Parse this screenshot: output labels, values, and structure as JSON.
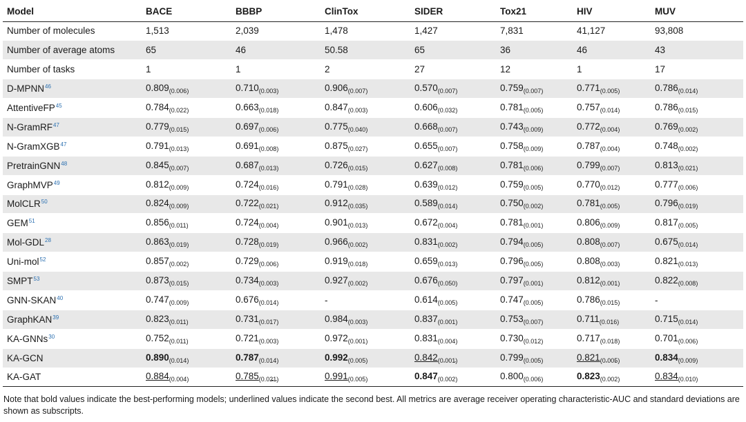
{
  "table": {
    "headers": [
      "Model",
      "BACE",
      "BBBP",
      "ClinTox",
      "SIDER",
      "Tox21",
      "HIV",
      "MUV"
    ],
    "rows": [
      {
        "label": "Number of molecules",
        "cells": [
          {
            "v": "1,513"
          },
          {
            "v": "2,039"
          },
          {
            "v": "1,478"
          },
          {
            "v": "1,427"
          },
          {
            "v": "7,831"
          },
          {
            "v": "41,127"
          },
          {
            "v": "93,808"
          }
        ]
      },
      {
        "label": "Number of average atoms",
        "cells": [
          {
            "v": "65"
          },
          {
            "v": "46"
          },
          {
            "v": "50.58"
          },
          {
            "v": "65"
          },
          {
            "v": "36"
          },
          {
            "v": "46"
          },
          {
            "v": "43"
          }
        ]
      },
      {
        "label": "Number of tasks",
        "cells": [
          {
            "v": "1"
          },
          {
            "v": "1"
          },
          {
            "v": "2"
          },
          {
            "v": "27"
          },
          {
            "v": "12"
          },
          {
            "v": "1"
          },
          {
            "v": "17"
          }
        ]
      },
      {
        "label": "D-MPNN",
        "ref": "46",
        "cells": [
          {
            "v": "0.809",
            "sd": "(0.006)"
          },
          {
            "v": "0.710",
            "sd": "(0.003)"
          },
          {
            "v": "0.906",
            "sd": "(0.007)"
          },
          {
            "v": "0.570",
            "sd": "(0.007)"
          },
          {
            "v": "0.759",
            "sd": "(0.007)"
          },
          {
            "v": "0.771",
            "sd": "(0.005)"
          },
          {
            "v": "0.786",
            "sd": "(0.014)"
          }
        ]
      },
      {
        "label": "AttentiveFP",
        "ref": "45",
        "cells": [
          {
            "v": "0.784",
            "sd": "(0.022)"
          },
          {
            "v": "0.663",
            "sd": "(0.018)"
          },
          {
            "v": "0.847",
            "sd": "(0.003)"
          },
          {
            "v": "0.606",
            "sd": "(0.032)"
          },
          {
            "v": "0.781",
            "sd": "(0.005)"
          },
          {
            "v": "0.757",
            "sd": "(0.014)"
          },
          {
            "v": "0.786",
            "sd": "(0.015)"
          }
        ]
      },
      {
        "label": "N-GramRF",
        "ref": "47",
        "cells": [
          {
            "v": "0.779",
            "sd": "(0.015)"
          },
          {
            "v": "0.697",
            "sd": "(0.006)"
          },
          {
            "v": "0.775",
            "sd": "(0.040)"
          },
          {
            "v": "0.668",
            "sd": "(0.007)"
          },
          {
            "v": "0.743",
            "sd": "(0.009)"
          },
          {
            "v": "0.772",
            "sd": "(0.004)"
          },
          {
            "v": "0.769",
            "sd": "(0.002)"
          }
        ]
      },
      {
        "label": "N-GramXGB",
        "ref": "47",
        "cells": [
          {
            "v": "0.791",
            "sd": "(0.013)"
          },
          {
            "v": "0.691",
            "sd": "(0.008)"
          },
          {
            "v": "0.875",
            "sd": "(0.027)"
          },
          {
            "v": "0.655",
            "sd": "(0.007)"
          },
          {
            "v": "0.758",
            "sd": "(0.009)"
          },
          {
            "v": "0.787",
            "sd": "(0.004)"
          },
          {
            "v": "0.748",
            "sd": "(0.002)"
          }
        ]
      },
      {
        "label": "PretrainGNN",
        "ref": "48",
        "cells": [
          {
            "v": "0.845",
            "sd": "(0.007)"
          },
          {
            "v": "0.687",
            "sd": "(0.013)"
          },
          {
            "v": "0.726",
            "sd": "(0.015)"
          },
          {
            "v": "0.627",
            "sd": "(0.008)"
          },
          {
            "v": "0.781",
            "sd": "(0.006)"
          },
          {
            "v": "0.799",
            "sd": "(0.007)"
          },
          {
            "v": "0.813",
            "sd": "(0.021)"
          }
        ]
      },
      {
        "label": "GraphMVP",
        "ref": "49",
        "cells": [
          {
            "v": "0.812",
            "sd": "(0.009)"
          },
          {
            "v": "0.724",
            "sd": "(0.016)"
          },
          {
            "v": "0.791",
            "sd": "(0.028)"
          },
          {
            "v": "0.639",
            "sd": "(0.012)"
          },
          {
            "v": "0.759",
            "sd": "(0.005)"
          },
          {
            "v": "0.770",
            "sd": "(0.012)"
          },
          {
            "v": "0.777",
            "sd": "(0.006)"
          }
        ]
      },
      {
        "label": "MolCLR",
        "ref": "50",
        "cells": [
          {
            "v": "0.824",
            "sd": "(0.009)"
          },
          {
            "v": "0.722",
            "sd": "(0.021)"
          },
          {
            "v": "0.912",
            "sd": "(0.035)"
          },
          {
            "v": "0.589",
            "sd": "(0.014)"
          },
          {
            "v": "0.750",
            "sd": "(0.002)"
          },
          {
            "v": "0.781",
            "sd": "(0.005)"
          },
          {
            "v": "0.796",
            "sd": "(0.019)"
          }
        ]
      },
      {
        "label": "GEM",
        "ref": "51",
        "cells": [
          {
            "v": "0.856",
            "sd": "(0.011)"
          },
          {
            "v": "0.724",
            "sd": "(0.004)"
          },
          {
            "v": "0.901",
            "sd": "(0.013)"
          },
          {
            "v": "0.672",
            "sd": "(0.004)"
          },
          {
            "v": "0.781",
            "sd": "(0.001)"
          },
          {
            "v": "0.806",
            "sd": "(0.009)"
          },
          {
            "v": "0.817",
            "sd": "(0.005)"
          }
        ]
      },
      {
        "label": "Mol-GDL",
        "ref": "28",
        "cells": [
          {
            "v": "0.863",
            "sd": "(0.019)"
          },
          {
            "v": "0.728",
            "sd": "(0.019)"
          },
          {
            "v": "0.966",
            "sd": "(0.002)"
          },
          {
            "v": "0.831",
            "sd": "(0.002)"
          },
          {
            "v": "0.794",
            "sd": "(0.005)"
          },
          {
            "v": "0.808",
            "sd": "(0.007)"
          },
          {
            "v": "0.675",
            "sd": "(0.014)"
          }
        ]
      },
      {
        "label": "Uni-mol",
        "ref": "52",
        "cells": [
          {
            "v": "0.857",
            "sd": "(0.002)"
          },
          {
            "v": "0.729",
            "sd": "(0.006)"
          },
          {
            "v": "0.919",
            "sd": "(0.018)"
          },
          {
            "v": "0.659",
            "sd": "(0.013)"
          },
          {
            "v": "0.796",
            "sd": "(0.005)"
          },
          {
            "v": "0.808",
            "sd": "(0.003)"
          },
          {
            "v": "0.821",
            "sd": "(0.013)"
          }
        ]
      },
      {
        "label": "SMPT",
        "ref": "53",
        "cells": [
          {
            "v": "0.873",
            "sd": "(0.015)"
          },
          {
            "v": "0.734",
            "sd": "(0.003)"
          },
          {
            "v": "0.927",
            "sd": "(0.002)"
          },
          {
            "v": "0.676",
            "sd": "(0.050)"
          },
          {
            "v": "0.797",
            "sd": "(0.001)"
          },
          {
            "v": "0.812",
            "sd": "(0.001)"
          },
          {
            "v": "0.822",
            "sd": "(0.008)"
          }
        ]
      },
      {
        "label": "GNN-SKAN",
        "ref": "40",
        "cells": [
          {
            "v": "0.747",
            "sd": "(0.009)"
          },
          {
            "v": "0.676",
            "sd": "(0.014)"
          },
          {
            "v": "-"
          },
          {
            "v": "0.614",
            "sd": "(0.005)"
          },
          {
            "v": "0.747",
            "sd": "(0.005)"
          },
          {
            "v": "0.786",
            "sd": "(0.015)"
          },
          {
            "v": "-"
          }
        ]
      },
      {
        "label": "GraphKAN",
        "ref": "39",
        "cells": [
          {
            "v": "0.823",
            "sd": "(0.011)"
          },
          {
            "v": "0.731",
            "sd": "(0.017)"
          },
          {
            "v": "0.984",
            "sd": "(0.003)"
          },
          {
            "v": "0.837",
            "sd": "(0.001)"
          },
          {
            "v": "0.753",
            "sd": "(0.007)"
          },
          {
            "v": "0.711",
            "sd": "(0.016)"
          },
          {
            "v": "0.715",
            "sd": "(0.014)"
          }
        ]
      },
      {
        "label": "KA-GNNs",
        "ref": "30",
        "cells": [
          {
            "v": "0.752",
            "sd": "(0.011)"
          },
          {
            "v": "0.721",
            "sd": "(0.003)"
          },
          {
            "v": "0.972",
            "sd": "(0.001)"
          },
          {
            "v": "0.831",
            "sd": "(0.004)"
          },
          {
            "v": "0.730",
            "sd": "(0.012)"
          },
          {
            "v": "0.717",
            "sd": "(0.018)"
          },
          {
            "v": "0.701",
            "sd": "(0.006)"
          }
        ]
      },
      {
        "label": "KA-GCN",
        "cells": [
          {
            "v": "0.890",
            "sd": "(0.014)",
            "style": "b"
          },
          {
            "v": "0.787",
            "sd": "(0.014)",
            "style": "b"
          },
          {
            "v": "0.992",
            "sd": "(0.005)",
            "style": "b"
          },
          {
            "v": "0.842",
            "sd": "(0.001)",
            "style": "u"
          },
          {
            "v": "0.799",
            "sd": "(0.005)"
          },
          {
            "v": "0.821",
            "sd": "(0.005)",
            "style": "u"
          },
          {
            "v": "0.834",
            "sd": "(0.009)",
            "style": "b"
          }
        ]
      },
      {
        "label": "KA-GAT",
        "cells": [
          {
            "v": "0.884",
            "sd": "(0.004)",
            "style": "u"
          },
          {
            "v": "0.785",
            "sd": "(0.021)",
            "style": "u"
          },
          {
            "v": "0.991",
            "sd": "(0.005)",
            "style": "u"
          },
          {
            "v": "0.847",
            "sd": "(0.002)",
            "style": "b"
          },
          {
            "v": "0.800",
            "sd": "(0.006)"
          },
          {
            "v": "0.823",
            "sd": "(0.002)",
            "style": "b"
          },
          {
            "v": "0.834",
            "sd": "(0.010)",
            "style": "u"
          }
        ]
      }
    ]
  },
  "note": "Note that bold values indicate the best-performing models; underlined values indicate the second best. All metrics are average receiver operating characteristic-AUC and standard deviations are shown as subscripts."
}
